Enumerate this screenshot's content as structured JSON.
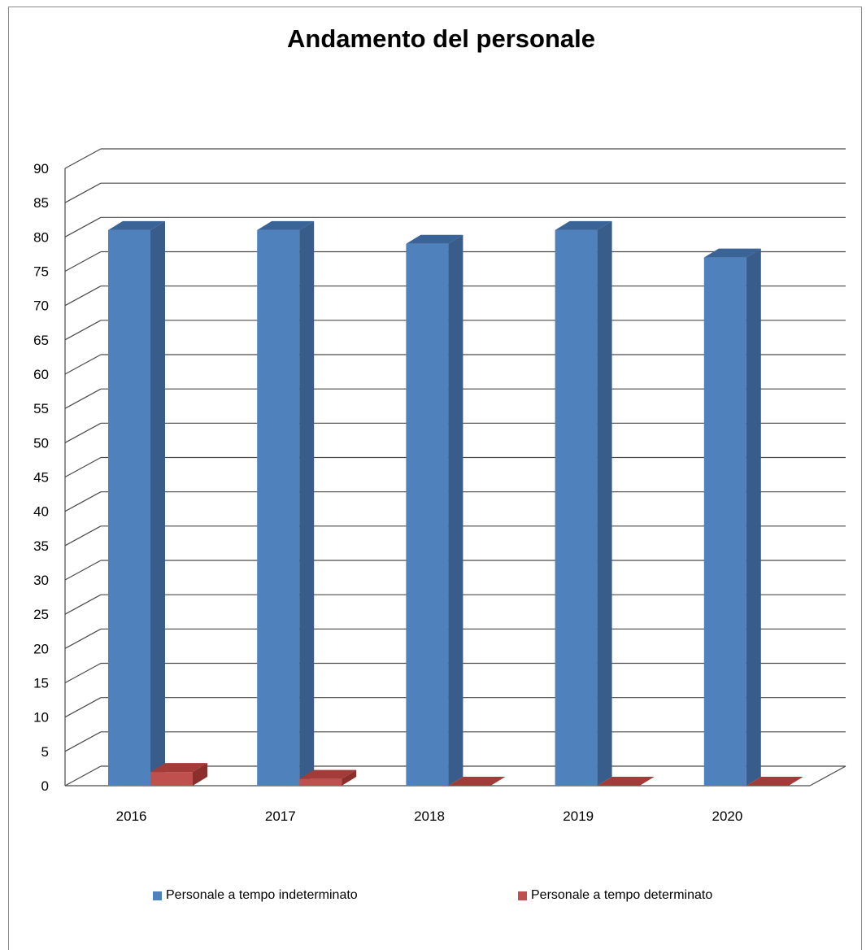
{
  "chart_data": {
    "type": "bar",
    "style": "3d-clustered-column",
    "title": "Andamento del personale",
    "xlabel": "",
    "ylabel": "",
    "categories": [
      "2016",
      "2017",
      "2018",
      "2019",
      "2020"
    ],
    "series": [
      {
        "name": "Personale a tempo indeterminato",
        "values": [
          81,
          81,
          79,
          81,
          77
        ],
        "color": "#4f81bd",
        "side_color": "#385d8a",
        "top_color": "#3a6398"
      },
      {
        "name": "Personale a tempo determinato",
        "values": [
          2,
          1,
          0,
          0,
          0
        ],
        "color": "#c0504d",
        "side_color": "#8c2e2b",
        "top_color": "#a33c39"
      }
    ],
    "ylim": [
      0,
      90
    ],
    "yticks": [
      0,
      5,
      10,
      15,
      20,
      25,
      30,
      35,
      40,
      45,
      50,
      55,
      60,
      65,
      70,
      75,
      80,
      85,
      90
    ],
    "grid": true,
    "legend_position": "bottom"
  }
}
